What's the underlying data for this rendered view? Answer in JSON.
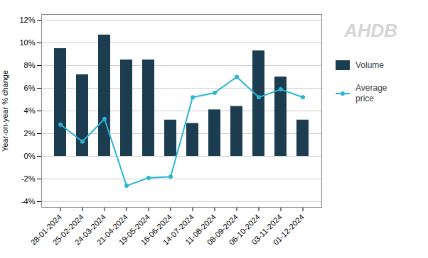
{
  "chart_data": {
    "type": "bar",
    "categories": [
      "28-01-2024",
      "25-02-2024",
      "24-03-2024",
      "21-04-2024",
      "19-05-2024",
      "16-06-2024",
      "14-07-2024",
      "11-08-2024",
      "08-09-2024",
      "06-10-2024",
      "03-11-2024",
      "01-12-2024"
    ],
    "series": [
      {
        "name": "Volume",
        "type": "bar",
        "color": "#1c3d4f",
        "values": [
          9.5,
          7.2,
          10.7,
          8.5,
          8.5,
          3.2,
          2.9,
          4.1,
          4.4,
          9.3,
          7.0,
          3.2
        ]
      },
      {
        "name": "Average\nprice",
        "type": "line",
        "marker": "circle",
        "color": "#29b4d4",
        "values": [
          2.8,
          1.3,
          3.3,
          -2.6,
          -1.9,
          -1.8,
          5.2,
          5.6,
          7.0,
          5.2,
          5.9,
          5.2
        ]
      }
    ],
    "ylabel": "Year-on-year % change",
    "ylim": [
      -4.5,
      12.5
    ],
    "yticks": [
      {
        "value": -4,
        "label": "-4%"
      },
      {
        "value": -2,
        "label": "-2%"
      },
      {
        "value": 0,
        "label": "0%"
      },
      {
        "value": 2,
        "label": "2%"
      },
      {
        "value": 4,
        "label": "4%"
      },
      {
        "value": 6,
        "label": "6%"
      },
      {
        "value": 8,
        "label": "8%"
      },
      {
        "value": 10,
        "label": "10%"
      },
      {
        "value": 12,
        "label": "12%"
      }
    ],
    "grid": true,
    "legend": "right",
    "annotations": [
      {
        "text": "AHDB",
        "color": "#d5d5d5"
      }
    ]
  }
}
